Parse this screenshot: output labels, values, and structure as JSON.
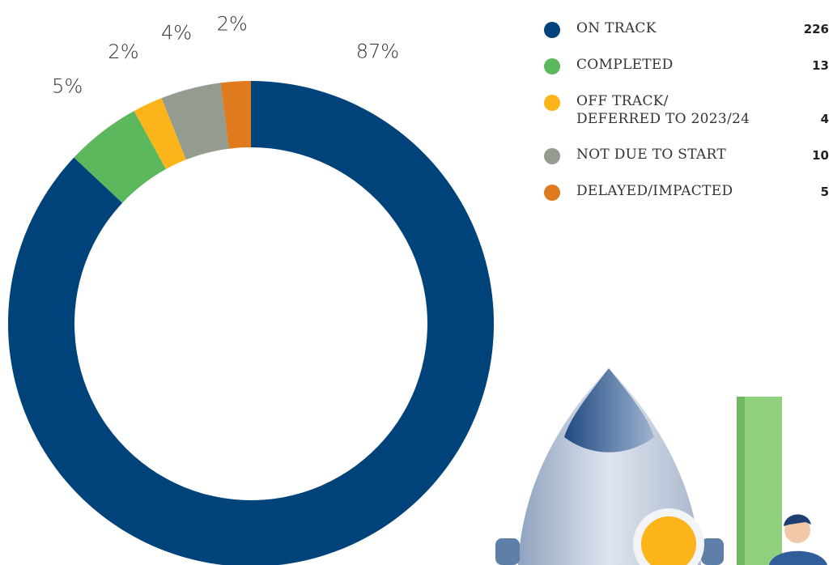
{
  "chart_data": {
    "type": "donut",
    "categories": [
      "ON TRACK",
      "COMPLETED",
      "OFF TRACK/\nDEFERRED TO 2023/24",
      "NOT DUE TO START",
      "DELAYED/IMPACTED"
    ],
    "values": [
      87,
      5,
      2,
      4,
      2
    ],
    "value_labels": [
      "87%",
      "5%",
      "2%",
      "4%",
      "2%"
    ],
    "counts": [
      226,
      13,
      4,
      10,
      5
    ],
    "colors": [
      "#00427a",
      "#5cb85c",
      "#fbb41a",
      "#949c90",
      "#e07a1f"
    ]
  }
}
